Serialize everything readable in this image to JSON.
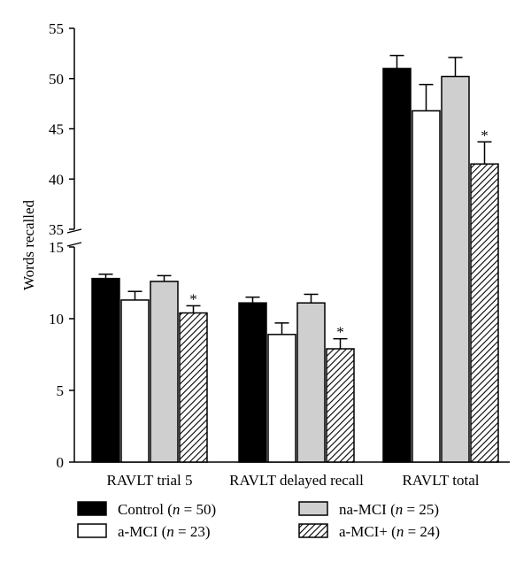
{
  "chart_data": {
    "type": "bar",
    "ylabel": "Words recalled",
    "title": "",
    "xlabel": "",
    "broken_y_axis": true,
    "y_lower_range": [
      0,
      15
    ],
    "y_upper_range": [
      35,
      55
    ],
    "y_lower_ticks": [
      "0",
      "5",
      "10",
      "15"
    ],
    "y_upper_ticks": [
      "35",
      "40",
      "45",
      "50",
      "55"
    ],
    "categories": [
      "RAVLT trial 5",
      "RAVLT delayed recall",
      "RAVLT total"
    ],
    "series": [
      {
        "name": "Control (n = 50)",
        "name_parts": [
          "Control (",
          "n",
          " = 50)"
        ],
        "fill": "solid-black",
        "values": [
          12.8,
          11.1,
          51.0
        ],
        "errors": [
          0.3,
          0.4,
          1.3
        ]
      },
      {
        "name": "a-MCI (n = 23)",
        "name_parts": [
          "a-MCI (",
          "n",
          " = 23)"
        ],
        "fill": "white",
        "values": [
          11.3,
          8.9,
          46.8
        ],
        "errors": [
          0.6,
          0.8,
          2.6
        ]
      },
      {
        "name": "na-MCI (n = 25)",
        "name_parts": [
          "na-MCI (",
          "n",
          " = 25)"
        ],
        "fill": "light-gray",
        "values": [
          12.6,
          11.1,
          50.2
        ],
        "errors": [
          0.4,
          0.6,
          1.9
        ]
      },
      {
        "name": "a-MCI+ (n = 24)",
        "name_parts": [
          "a-MCI+ (",
          "n",
          " = 24)"
        ],
        "fill": "hatched",
        "values": [
          10.4,
          7.9,
          41.5
        ],
        "errors": [
          0.5,
          0.7,
          2.2
        ]
      }
    ],
    "significance_marker": "*",
    "significant_series": "a-MCI+ (n = 24)",
    "legend_placement": "bottom",
    "grid": false
  }
}
